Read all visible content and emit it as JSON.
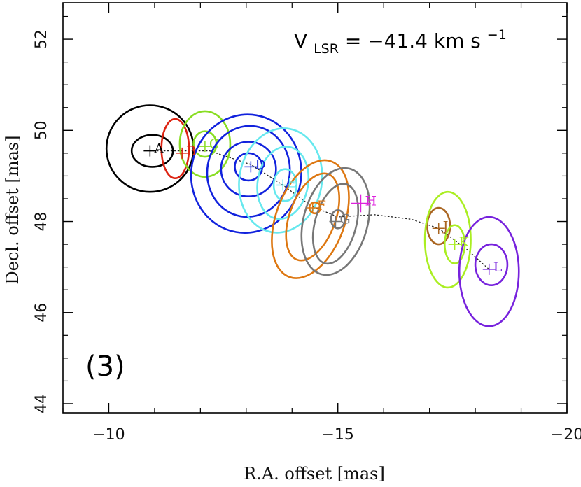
{
  "chart_data": {
    "type": "contour",
    "title": "",
    "xlabel": "R.A. offset [mas]",
    "ylabel": "Decl. offset [mas]",
    "xlim": [
      -9,
      -20
    ],
    "ylim": [
      43.8,
      52.8
    ],
    "xticks": [
      -10,
      -15,
      -20
    ],
    "xtick_labels": [
      "−10",
      "−15",
      "−20"
    ],
    "yticks": [
      44,
      46,
      48,
      50,
      52
    ],
    "ytick_labels": [
      "44",
      "46",
      "48",
      "50",
      "52"
    ],
    "panel_label": "(3)",
    "annotation": {
      "prefix": "V",
      "subscript": "LSR",
      "value_text": " = −41.4 km s",
      "superscript": "−1"
    },
    "track_style": "dotted",
    "track": [
      [
        -10.9,
        49.55
      ],
      [
        -11.6,
        49.55
      ],
      [
        -12.2,
        49.55
      ],
      [
        -13.1,
        49.25
      ],
      [
        -13.8,
        48.8
      ],
      [
        -14.4,
        48.35
      ],
      [
        -15.0,
        48.1
      ],
      [
        -15.8,
        48.15
      ],
      [
        -16.6,
        48.05
      ],
      [
        -17.2,
        47.85
      ],
      [
        -17.8,
        47.4
      ],
      [
        -18.3,
        46.95
      ]
    ],
    "components": [
      {
        "label": "A",
        "color": "#000000",
        "x": -10.9,
        "y": 49.55,
        "contours": [
          {
            "cx": -10.9,
            "cy": 49.6,
            "rx": 0.95,
            "ry": 0.95,
            "rot": 0
          },
          {
            "cx": -10.95,
            "cy": 49.55,
            "rx": 0.45,
            "ry": 0.35,
            "rot": 0
          }
        ]
      },
      {
        "label": "B",
        "color": "#dd2211",
        "x": -11.6,
        "y": 49.5,
        "contours": [
          {
            "cx": -11.45,
            "cy": 49.6,
            "rx": 0.3,
            "ry": 0.65,
            "rot": 0
          }
        ]
      },
      {
        "label": "C",
        "color": "#88dd22",
        "x": -12.1,
        "y": 49.65,
        "contours": [
          {
            "cx": -12.1,
            "cy": 49.7,
            "rx": 0.55,
            "ry": 0.72,
            "rot": 0
          },
          {
            "cx": -12.1,
            "cy": 49.7,
            "rx": 0.25,
            "ry": 0.28,
            "rot": 0
          }
        ]
      },
      {
        "label": "D",
        "color": "#1122dd",
        "x": -13.1,
        "y": 49.2,
        "contours": [
          {
            "cx": -13.0,
            "cy": 49.05,
            "rx": 1.2,
            "ry": 1.3,
            "rot": 10
          },
          {
            "cx": -13.05,
            "cy": 49.1,
            "rx": 0.9,
            "ry": 1.0,
            "rot": 10
          },
          {
            "cx": -13.05,
            "cy": 49.15,
            "rx": 0.6,
            "ry": 0.6,
            "rot": 0
          },
          {
            "cx": -13.05,
            "cy": 49.2,
            "rx": 0.3,
            "ry": 0.3,
            "rot": 0
          }
        ]
      },
      {
        "label": "E",
        "color": "#66e8ee",
        "x": -13.8,
        "y": 48.8,
        "contours": [
          {
            "cx": -13.75,
            "cy": 48.9,
            "rx": 0.9,
            "ry": 1.15,
            "rot": 10
          },
          {
            "cx": -13.8,
            "cy": 48.85,
            "rx": 0.55,
            "ry": 0.8,
            "rot": 10
          },
          {
            "cx": -13.85,
            "cy": 48.8,
            "rx": 0.25,
            "ry": 0.35,
            "rot": 0
          }
        ]
      },
      {
        "label": "F",
        "color": "#dd7711",
        "x": -14.45,
        "y": 48.3,
        "contours": [
          {
            "cx": -14.4,
            "cy": 48.05,
            "rx": 0.75,
            "ry": 1.35,
            "rot": 20
          },
          {
            "cx": -14.45,
            "cy": 48.1,
            "rx": 0.5,
            "ry": 1.0,
            "rot": 20
          },
          {
            "cx": -14.5,
            "cy": 48.3,
            "rx": 0.12,
            "ry": 0.12,
            "rot": 0
          }
        ]
      },
      {
        "label": "G",
        "color": "#777777",
        "x": -14.95,
        "y": 48.0,
        "contours": [
          {
            "cx": -14.95,
            "cy": 48.0,
            "rx": 0.7,
            "ry": 1.2,
            "rot": 15
          },
          {
            "cx": -14.95,
            "cy": 47.95,
            "rx": 0.45,
            "ry": 0.9,
            "rot": 15
          },
          {
            "cx": -15.0,
            "cy": 48.05,
            "rx": 0.15,
            "ry": 0.2,
            "rot": 0
          }
        ]
      },
      {
        "label": "H",
        "color": "#dd22dd",
        "x": -15.5,
        "y": 48.4,
        "contours": []
      },
      {
        "label": "J",
        "color": "#aa6622",
        "x": -17.2,
        "y": 47.85,
        "contours": [
          {
            "cx": -17.2,
            "cy": 47.9,
            "rx": 0.25,
            "ry": 0.4,
            "rot": 0
          }
        ]
      },
      {
        "label": "K",
        "color": "#aaee22",
        "x": -17.55,
        "y": 47.5,
        "contours": [
          {
            "cx": -17.4,
            "cy": 47.6,
            "rx": 0.5,
            "ry": 1.05,
            "rot": 0
          },
          {
            "cx": -17.55,
            "cy": 47.5,
            "rx": 0.22,
            "ry": 0.42,
            "rot": 0
          }
        ]
      },
      {
        "label": "L",
        "color": "#7722dd",
        "x": -18.3,
        "y": 46.95,
        "contours": [
          {
            "cx": -18.3,
            "cy": 46.9,
            "rx": 0.65,
            "ry": 1.2,
            "rot": 0
          },
          {
            "cx": -18.35,
            "cy": 47.05,
            "rx": 0.35,
            "ry": 0.45,
            "rot": 0
          }
        ]
      }
    ]
  }
}
